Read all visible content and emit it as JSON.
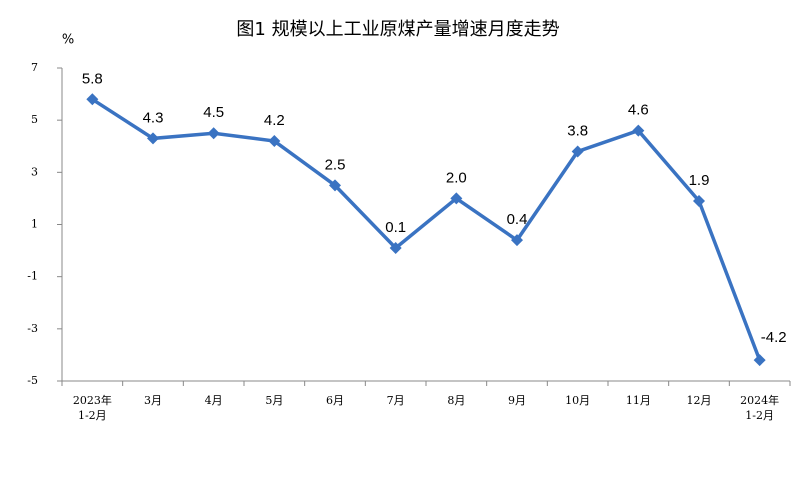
{
  "chart_data": {
    "type": "line",
    "title": "图1  规模以上工业原煤产量增速月度走势",
    "y_label": "%",
    "categories": [
      "2023年\n1-2月",
      "3月",
      "4月",
      "5月",
      "6月",
      "7月",
      "8月",
      "9月",
      "10月",
      "11月",
      "12月",
      "2024年\n1-2月"
    ],
    "series": [
      {
        "name": "原煤产量增速",
        "color": "#3a73c2",
        "values": [
          5.8,
          4.3,
          4.5,
          4.2,
          2.5,
          0.1,
          2.0,
          0.4,
          3.8,
          4.6,
          1.9,
          -4.2
        ],
        "value_labels": [
          "5.8",
          "4.3",
          "4.5",
          "4.2",
          "2.5",
          "0.1",
          "2.0",
          "0.4",
          "3.8",
          "4.6",
          "1.9",
          "-4.2"
        ]
      }
    ],
    "ylim": [
      -5,
      7
    ],
    "yticks": [
      -5,
      -3,
      -1,
      1,
      3,
      5,
      7
    ],
    "grid": false
  }
}
